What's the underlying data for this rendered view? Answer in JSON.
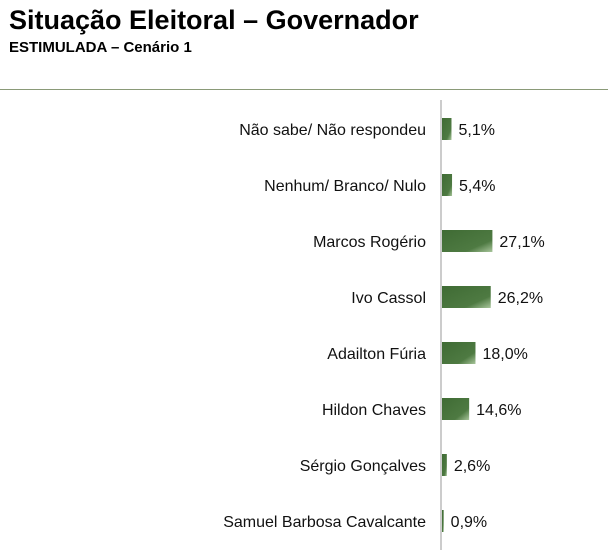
{
  "header": {
    "title": "Situação Eleitoral – Governador",
    "subtitle": "ESTIMULADA – Cenário 1"
  },
  "colors": {
    "bar_dark": "#3f6b34",
    "bar_light": "#9bbb8e",
    "axis": "#999999",
    "rule": "#8a9a78"
  },
  "chart_data": {
    "type": "bar",
    "orientation": "horizontal",
    "title": "Situação Eleitoral – Governador",
    "subtitle": "ESTIMULADA – Cenário 1",
    "categories": [
      "Não sabe/ Não respondeu",
      "Nenhum/ Branco/ Nulo",
      "Marcos Rogério",
      "Ivo Cassol",
      "Adailton Fúria",
      "Hildon Chaves",
      "Sérgio Gonçalves",
      "Samuel Barbosa Cavalcante"
    ],
    "values": [
      5.1,
      5.4,
      27.1,
      26.2,
      18.0,
      14.6,
      2.6,
      0.9
    ],
    "value_labels": [
      "5,1%",
      "5,4%",
      "27,1%",
      "26,2%",
      "18,0%",
      "14,6%",
      "2,6%",
      "0,9%"
    ],
    "xlim": [
      0,
      100
    ],
    "grid": false,
    "legend": "none"
  }
}
